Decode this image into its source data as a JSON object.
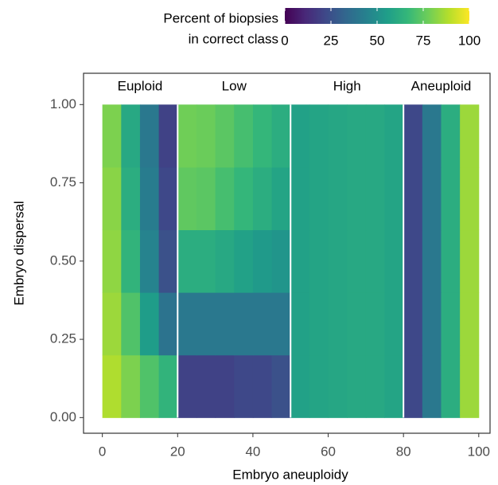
{
  "chart_data": {
    "type": "heatmap",
    "x_axis_title": "Embryo aneuploidy",
    "y_axis_title": "Embryo dispersal",
    "xlim": [
      -5,
      103
    ],
    "ylim": [
      -0.05,
      1.1
    ],
    "xticks": [
      0,
      20,
      40,
      60,
      80,
      100
    ],
    "yticks": [
      {
        "value": 0,
        "label": "0.00"
      },
      {
        "value": 0.25,
        "label": "0.25"
      },
      {
        "value": 0.5,
        "label": "0.50"
      },
      {
        "value": 0.75,
        "label": "0.75"
      },
      {
        "value": 1,
        "label": "1.00"
      }
    ],
    "x_bins": [
      0,
      5,
      10,
      15,
      20,
      25,
      30,
      35,
      40,
      45,
      50,
      55,
      60,
      65,
      70,
      75,
      80,
      85,
      90,
      95,
      100
    ],
    "y_bins": [
      0,
      0.2,
      0.4,
      0.6,
      0.8,
      1
    ],
    "values": [
      [
        88,
        80,
        72,
        65,
        20,
        20,
        20,
        22,
        22,
        25,
        57,
        58,
        59,
        60,
        60,
        58,
        22,
        40,
        62,
        85
      ],
      [
        85,
        72,
        55,
        38,
        40,
        40,
        40,
        40,
        40,
        40,
        57,
        58,
        59,
        60,
        60,
        58,
        22,
        40,
        62,
        85
      ],
      [
        83,
        65,
        45,
        25,
        62,
        62,
        60,
        57,
        54,
        52,
        57,
        58,
        59,
        60,
        60,
        58,
        22,
        40,
        62,
        85
      ],
      [
        82,
        62,
        42,
        22,
        75,
        74,
        70,
        66,
        62,
        58,
        57,
        58,
        59,
        60,
        60,
        58,
        22,
        40,
        62,
        85
      ],
      [
        80,
        60,
        40,
        20,
        78,
        77,
        74,
        70,
        66,
        62,
        57,
        58,
        59,
        60,
        60,
        58,
        22,
        40,
        62,
        85
      ]
    ],
    "colormap": "viridis",
    "regions": [
      {
        "label": "Euploid",
        "from": 0,
        "to": 20
      },
      {
        "label": "Low",
        "from": 20,
        "to": 50
      },
      {
        "label": "High",
        "from": 50,
        "to": 80
      },
      {
        "label": "Aneuploid",
        "from": 80,
        "to": 100
      }
    ],
    "colorbar": {
      "title": [
        "Percent of biopsies",
        "in correct class"
      ],
      "lim": [
        0,
        100
      ],
      "ticks": [
        0,
        25,
        50,
        75,
        100
      ]
    }
  }
}
